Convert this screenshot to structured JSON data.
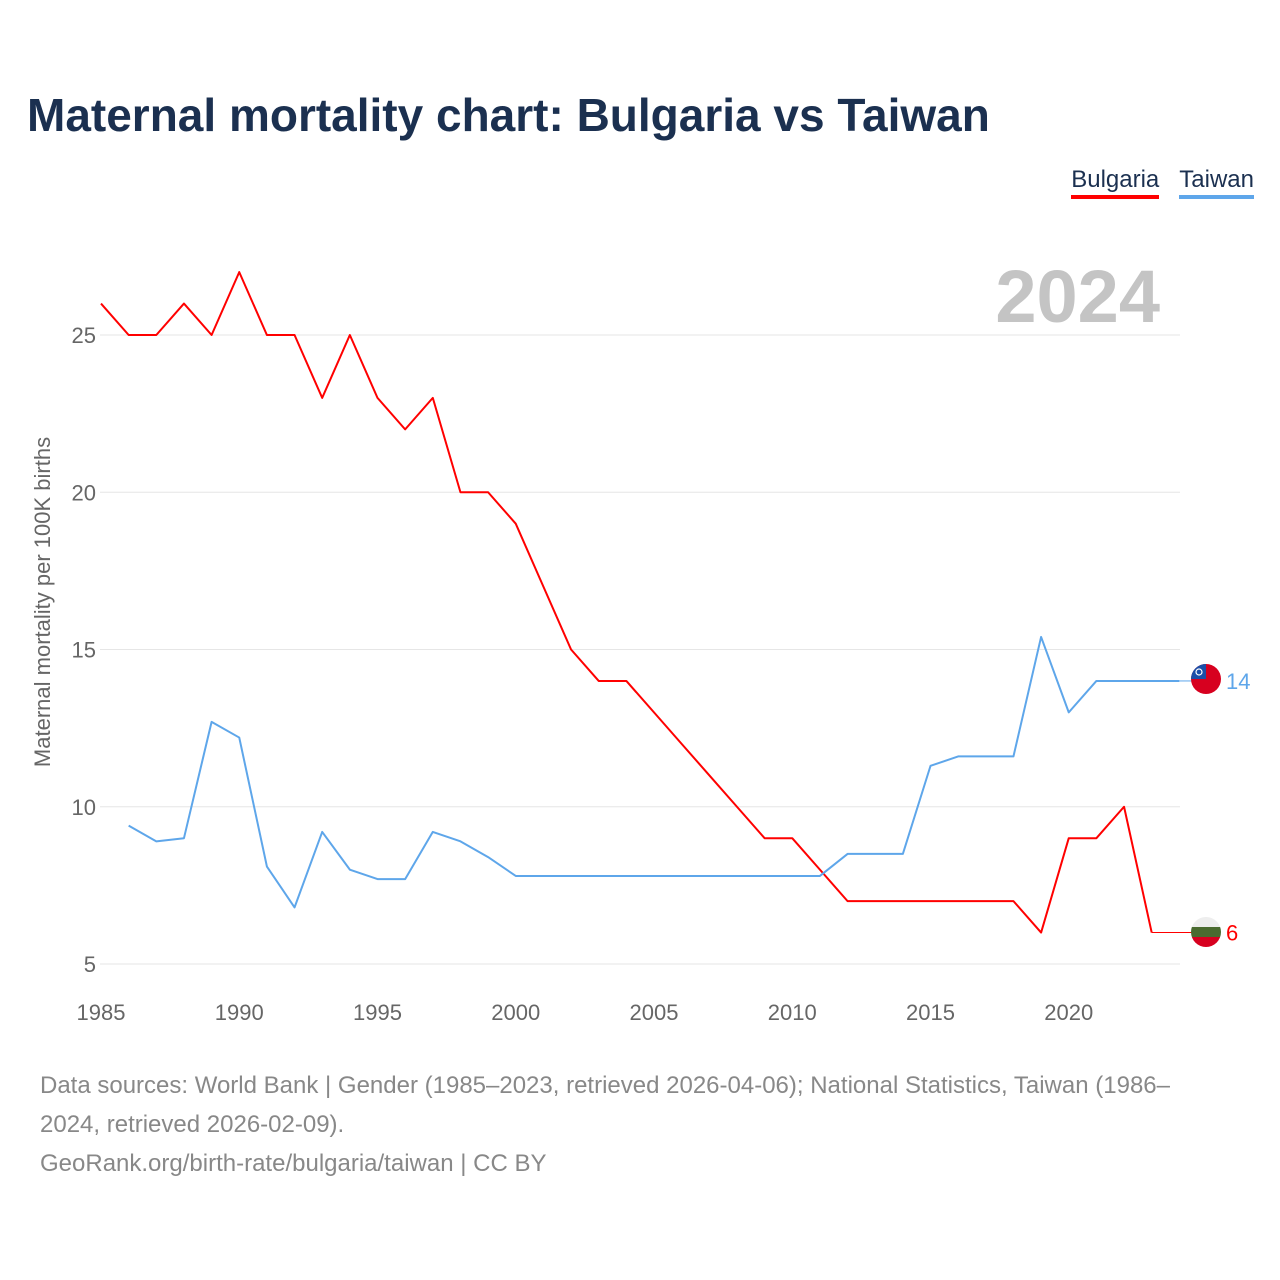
{
  "title": "Maternal mortality chart: Bulgaria vs Taiwan",
  "year_label": "2024",
  "footer": {
    "sources": "Data sources: World Bank | Gender (1985–2023, retrieved 2026-04-06); National Statistics, Taiwan (1986–2024, retrieved 2026-02-09).",
    "credit": "GeoRank.org/birth-rate/bulgaria/taiwan | CC BY"
  },
  "chart_data": {
    "type": "line",
    "title": "Maternal mortality chart: Bulgaria vs Taiwan",
    "xlabel": "",
    "ylabel": "Maternal mortality per 100K births",
    "xlim": [
      1985,
      2024
    ],
    "ylim": [
      5,
      27.5
    ],
    "xticks": [
      1985,
      1990,
      1995,
      2000,
      2005,
      2010,
      2015,
      2020
    ],
    "yticks": [
      5,
      10,
      15,
      20,
      25
    ],
    "grid": true,
    "legend_position": "top-right",
    "series": [
      {
        "name": "Bulgaria",
        "color": "#ff0000",
        "end_label": "6",
        "x": [
          1985,
          1986,
          1987,
          1988,
          1989,
          1990,
          1991,
          1992,
          1993,
          1994,
          1995,
          1996,
          1997,
          1998,
          1999,
          2000,
          2001,
          2002,
          2003,
          2004,
          2005,
          2006,
          2007,
          2008,
          2009,
          2010,
          2011,
          2012,
          2013,
          2014,
          2015,
          2016,
          2017,
          2018,
          2019,
          2020,
          2021,
          2022,
          2023
        ],
        "values": [
          26,
          25,
          25,
          26,
          25,
          27,
          25,
          25,
          23,
          25,
          23,
          22,
          23,
          20,
          20,
          19,
          17,
          15,
          14,
          14,
          13,
          12,
          11,
          10,
          9,
          9,
          8,
          7,
          7,
          7,
          7,
          7,
          7,
          7,
          6,
          9,
          9,
          10,
          6
        ]
      },
      {
        "name": "Taiwan",
        "color": "#5ea6ea",
        "end_label": "14",
        "x": [
          1986,
          1987,
          1988,
          1989,
          1990,
          1991,
          1992,
          1993,
          1994,
          1995,
          1996,
          1997,
          1998,
          1999,
          2000,
          2001,
          2002,
          2003,
          2004,
          2005,
          2006,
          2007,
          2008,
          2009,
          2010,
          2011,
          2012,
          2013,
          2014,
          2015,
          2016,
          2017,
          2018,
          2019,
          2020,
          2021,
          2022,
          2023,
          2024
        ],
        "values": [
          9.4,
          8.9,
          9.0,
          12.7,
          12.2,
          8.1,
          6.8,
          9.2,
          8.0,
          7.7,
          7.7,
          9.2,
          8.9,
          8.4,
          7.8,
          7.8,
          7.8,
          7.8,
          7.8,
          7.8,
          7.8,
          7.8,
          7.8,
          7.8,
          7.8,
          7.8,
          8.5,
          8.5,
          8.5,
          11.3,
          11.6,
          11.6,
          11.6,
          15.4,
          13.0,
          14,
          14,
          14,
          14
        ]
      }
    ]
  }
}
